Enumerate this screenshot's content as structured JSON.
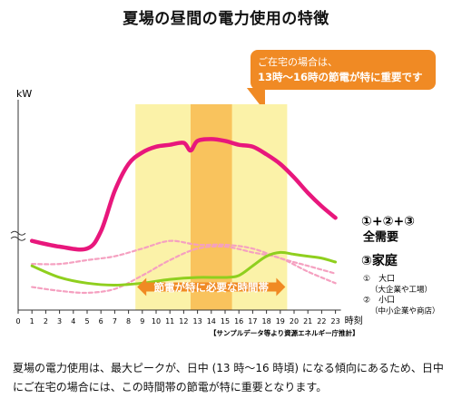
{
  "title": "夏場の昼間の電力使用の特徴",
  "callout": {
    "line1": "ご在宅の場合は、",
    "line2": "13時～16時の節電が特に重要です"
  },
  "chart_data": {
    "type": "line",
    "x": [
      0,
      1,
      2,
      3,
      4,
      5,
      6,
      7,
      8,
      9,
      10,
      11,
      12,
      13,
      14,
      15,
      16,
      17,
      18,
      19,
      20,
      21,
      22,
      23
    ],
    "xlabel": "時刻",
    "ylabel": "kW",
    "xlim": [
      0,
      23
    ],
    "yunits_note": "axis break shown near low end (≈)",
    "series": [
      {
        "name": "①+②+③ 全需要",
        "style": "solid",
        "color": "#e8177c",
        "x": [
          1,
          3,
          5,
          6,
          7,
          8,
          9,
          10,
          11,
          12,
          12.5,
          13,
          14,
          15,
          16,
          17,
          18,
          19,
          20,
          21,
          22,
          23
        ],
        "values": [
          36,
          33,
          32,
          41,
          62,
          76,
          82,
          85,
          86,
          87,
          83,
          88,
          89,
          88,
          86,
          85,
          81,
          76,
          69,
          61,
          54,
          48
        ]
      },
      {
        "name": "③家庭",
        "style": "solid",
        "color": "#8fcf1e",
        "x": [
          1,
          3,
          5,
          7,
          9,
          11,
          13,
          15,
          16,
          17,
          18,
          19,
          20,
          21,
          22,
          23
        ],
        "values": [
          23,
          17,
          14,
          13,
          14,
          16,
          17,
          17,
          18,
          23,
          28,
          30,
          29,
          28,
          27,
          25
        ]
      },
      {
        "name": "① 大口（大企業や工場）",
        "style": "dashed",
        "color": "#f5a0c0",
        "x": [
          1,
          3,
          5,
          7,
          9,
          11,
          13,
          15,
          17,
          19,
          21,
          23
        ],
        "values": [
          24,
          24,
          26,
          28,
          32,
          36,
          34,
          34,
          32,
          27,
          23,
          19
        ]
      },
      {
        "name": "② 小口（中小企業や商店）",
        "style": "dashed",
        "color": "#f5a0c0",
        "x": [
          1,
          3,
          5,
          7,
          9,
          11,
          13,
          15,
          17,
          19,
          21,
          23
        ],
        "values": [
          12,
          10,
          9,
          11,
          18,
          26,
          32,
          33,
          30,
          27,
          20,
          14
        ]
      }
    ],
    "highlights": [
      {
        "from": 8.5,
        "to": 19.5,
        "label": "節電が特に必要な時間帯",
        "color": "#fbf2a8"
      },
      {
        "from": 12.5,
        "to": 15.5,
        "label": "",
        "color": "#f9c35d"
      }
    ],
    "legend_labels": {
      "total": "①+②+③",
      "total_sub": "全需要",
      "home": "③家庭",
      "large": "①　大口",
      "large_sub": "（大企業や工場）",
      "small": "②　小口",
      "small_sub": "（中小企業や商店）"
    },
    "source": "【サンプルデータ等より資源エネルギー庁推計】"
  },
  "note": "夏場の電力使用は、最大ピークが、日中 (13 時～16 時頃) になる傾向にあるため、日中にご在宅の場合には、この時間帯の節電が特に重要となります。"
}
